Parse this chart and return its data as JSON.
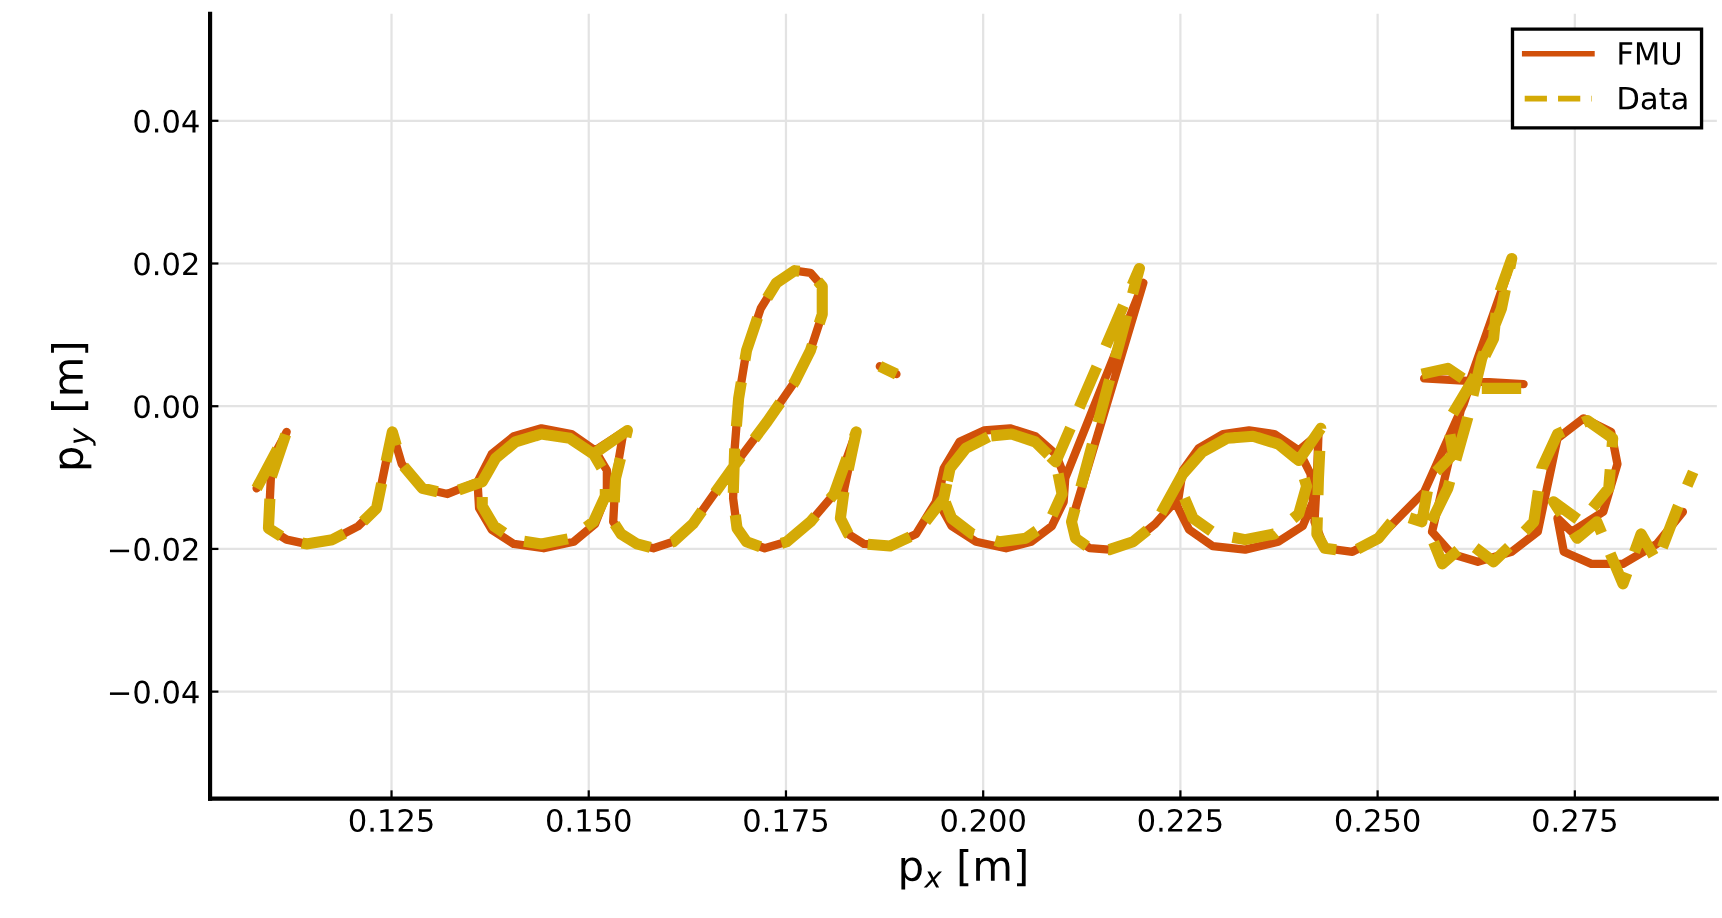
{
  "chart_data": {
    "type": "line",
    "xlabel": "p$_{x}$ [m]",
    "ylabel": "p$_{y}$ [m]",
    "xlim": [
      0.102,
      0.293
    ],
    "ylim": [
      -0.055,
      0.055
    ],
    "xticks": [
      0.125,
      {
        "value": 0.15,
        "label": "0.150"
      },
      0.175,
      {
        "value": 0.2,
        "label": "0.200"
      },
      0.225,
      {
        "value": 0.25,
        "label": "0.250"
      },
      0.275
    ],
    "yticks": [
      -0.04,
      -0.02,
      {
        "value": 0.0,
        "label": "0.00"
      },
      0.02,
      0.04
    ],
    "grid": true,
    "legend": "top right",
    "series": [
      {
        "name": "FMU",
        "color": "#d1500a",
        "line_style": "solid",
        "x": [
          0.1079,
          0.1117,
          0.1097,
          0.1094,
          0.1117,
          0.1142,
          0.1175,
          0.1208,
          0.1231,
          0.1243,
          0.1251,
          0.1263,
          0.1289,
          0.1321,
          0.1359,
          0.1377,
          0.1405,
          0.144,
          0.1478,
          0.1508,
          0.1523,
          0.1523,
          0.1508,
          0.1481,
          0.1443,
          0.1405,
          0.1377,
          0.1361,
          0.1359,
          0.1377,
          0.1405,
          0.144,
          0.1478,
          0.1508,
          0.1544,
          0.1534,
          0.1531,
          0.1541,
          0.1561,
          0.1582,
          0.1607,
          0.1632,
          0.1655,
          0.1688,
          0.1726,
          0.1761,
          0.1781,
          0.1796,
          0.1796,
          0.1781,
          0.1761,
          0.1738,
          0.1718,
          0.17,
          0.169,
          0.1685,
          0.1683,
          0.1688,
          0.17,
          0.1723,
          0.1751,
          0.1781,
          0.1811,
          0.1839,
          0.1824,
          0.1819,
          0.1829,
          0.1849,
          0.1882,
          0.1915,
          0.194,
          0.195,
          0.197,
          0.2001,
          0.2034,
          0.2066,
          0.2092,
          0.2104,
          0.2102,
          0.2087,
          0.2061,
          0.2029,
          0.1991,
          0.196,
          0.1943,
          0.195,
          0.197,
          0.2001,
          0.2034,
          0.2066,
          0.2092,
          0.2104,
          0.2203,
          0.2112,
          0.2117,
          0.2135,
          0.216,
          0.219,
          0.2218,
          0.2243,
          0.2253,
          0.2273,
          0.2304,
          0.2337,
          0.2369,
          0.24,
          0.2415,
          0.2418,
          0.2405,
          0.2374,
          0.2332,
          0.2291,
          0.2261,
          0.2246,
          0.2253,
          0.2273,
          0.2304,
          0.2337,
          0.2369,
          0.24,
          0.2425,
          0.2423,
          0.242,
          0.2433,
          0.2468,
          0.2501,
          0.2559,
          0.2609,
          0.2665,
          0.2609,
          0.2569,
          0.2594,
          0.2627,
          0.267,
          0.2703,
          0.2728,
          0.2761,
          0.2796,
          0.2804,
          0.2786,
          0.2746,
          0.2728,
          0.2736,
          0.2771,
          0.2811,
          0.2854,
          0.2887,
          null,
          0.2559,
          0.2685,
          null,
          0.1869,
          0.189
        ],
        "values": [
          -0.0115,
          -0.0036,
          -0.0101,
          -0.0171,
          -0.0187,
          -0.0193,
          -0.0187,
          -0.0168,
          -0.0143,
          -0.0078,
          -0.0036,
          -0.0081,
          -0.0115,
          -0.0123,
          -0.0106,
          -0.0067,
          -0.0042,
          -0.0031,
          -0.0039,
          -0.0062,
          -0.009,
          -0.0123,
          -0.0165,
          -0.019,
          -0.0199,
          -0.0193,
          -0.0173,
          -0.0143,
          -0.0106,
          -0.0067,
          -0.0042,
          -0.0031,
          -0.0039,
          -0.0062,
          -0.0036,
          -0.0101,
          -0.0162,
          -0.0179,
          -0.0193,
          -0.0199,
          -0.019,
          -0.0165,
          -0.0129,
          -0.0078,
          -0.0022,
          0.0034,
          0.0078,
          0.0129,
          0.0168,
          0.0187,
          0.019,
          0.0173,
          0.0137,
          0.0078,
          0.0011,
          -0.0059,
          -0.0129,
          -0.0171,
          -0.019,
          -0.0199,
          -0.019,
          -0.0162,
          -0.0123,
          -0.0036,
          -0.0115,
          -0.0157,
          -0.0179,
          -0.0193,
          -0.0196,
          -0.0179,
          -0.0134,
          -0.0087,
          -0.005,
          -0.0034,
          -0.0031,
          -0.0042,
          -0.0067,
          -0.0101,
          -0.0134,
          -0.0168,
          -0.019,
          -0.0199,
          -0.019,
          -0.0168,
          -0.0134,
          -0.0087,
          -0.005,
          -0.0034,
          -0.0031,
          -0.0042,
          -0.0067,
          -0.0101,
          0.0173,
          -0.0162,
          -0.0185,
          -0.0199,
          -0.0201,
          -0.019,
          -0.0165,
          -0.0134,
          -0.009,
          -0.0059,
          -0.0039,
          -0.0034,
          -0.0039,
          -0.0062,
          -0.0095,
          -0.0134,
          -0.0168,
          -0.019,
          -0.0201,
          -0.0196,
          -0.0173,
          -0.014,
          -0.009,
          -0.0059,
          -0.0039,
          -0.0034,
          -0.0039,
          -0.0062,
          -0.0039,
          -0.0101,
          -0.0162,
          -0.0199,
          -0.0204,
          -0.0185,
          -0.012,
          0.0003,
          0.0187,
          0.0011,
          -0.0176,
          -0.0207,
          -0.0218,
          -0.0204,
          -0.0176,
          -0.0045,
          -0.0017,
          -0.0036,
          -0.0081,
          -0.0148,
          -0.0176,
          -0.0157,
          -0.0204,
          -0.0221,
          -0.0221,
          -0.0193,
          -0.0148,
          null,
          0.0039,
          0.0031,
          null,
          0.0056,
          0.0045
        ]
      },
      {
        "name": "Data",
        "color": "#d4aa06",
        "line_style": "dashed",
        "x": [
          0.1079,
          0.1117,
          0.1097,
          0.1094,
          0.1117,
          0.1142,
          0.1175,
          0.1208,
          0.1231,
          0.1243,
          0.1251,
          0.1263,
          0.1289,
          0.1321,
          0.1365,
          0.1382,
          0.1407,
          0.144,
          0.1476,
          0.1506,
          0.1521,
          0.1521,
          0.1506,
          0.1478,
          0.144,
          0.1405,
          0.138,
          0.1365,
          0.1365,
          0.1382,
          0.1407,
          0.144,
          0.1476,
          0.1506,
          0.1549,
          0.1534,
          0.1531,
          0.1541,
          0.1561,
          0.1582,
          0.1607,
          0.1632,
          0.1655,
          0.1688,
          0.1726,
          0.1761,
          0.1781,
          0.1796,
          0.1796,
          0.1781,
          0.1761,
          0.1738,
          0.1718,
          0.17,
          0.169,
          0.1685,
          0.1683,
          0.1688,
          0.17,
          0.1723,
          0.1751,
          0.1781,
          0.1811,
          0.1839,
          0.1824,
          0.1819,
          0.1829,
          0.1849,
          0.1882,
          0.1915,
          0.195,
          0.1958,
          0.1978,
          0.2008,
          0.2036,
          0.2066,
          0.2092,
          0.21,
          0.2084,
          0.2054,
          0.2021,
          0.1986,
          0.196,
          0.195,
          0.1958,
          0.1978,
          0.2008,
          0.2036,
          0.2066,
          0.2092,
          0.2198,
          0.2112,
          0.2117,
          0.2135,
          0.216,
          0.219,
          0.2218,
          0.2253,
          0.2278,
          0.2309,
          0.2342,
          0.2374,
          0.24,
          0.241,
          0.24,
          0.2369,
          0.2332,
          0.2294,
          0.2266,
          0.2253,
          0.2253,
          0.2278,
          0.2309,
          0.2342,
          0.2374,
          0.24,
          0.2428,
          0.2425,
          0.2423,
          0.2433,
          0.2468,
          0.2501,
          0.2526,
          0.2556,
          0.2566,
          0.2596,
          0.2589,
          0.2622,
          0.2647,
          0.2652,
          0.267,
          0.2657,
          0.2632,
          0.2614,
          0.2589,
          0.2564,
          0.2582,
          0.2614,
          0.2647,
          0.2678,
          0.2698,
          0.2708,
          0.2728,
          0.2766,
          0.2798,
          0.2793,
          0.2758,
          0.2723,
          0.2753,
          0.2778,
          0.2811,
          0.2834,
          0.2854,
          0.288,
          0.29,
          null,
          0.2556,
          0.2589,
          0.2627,
          0.2682,
          null,
          0.1869,
          0.189
        ],
        "values": [
          -0.0115,
          -0.0036,
          -0.0101,
          -0.0171,
          -0.0187,
          -0.0193,
          -0.0187,
          -0.0168,
          -0.0143,
          -0.0078,
          -0.0036,
          -0.0081,
          -0.0115,
          -0.0123,
          -0.0106,
          -0.0073,
          -0.005,
          -0.0039,
          -0.0045,
          -0.0067,
          -0.0095,
          -0.0126,
          -0.0162,
          -0.0185,
          -0.0193,
          -0.0187,
          -0.0168,
          -0.014,
          -0.0106,
          -0.0073,
          -0.005,
          -0.0039,
          -0.0045,
          -0.0067,
          -0.0034,
          -0.0101,
          -0.0162,
          -0.0179,
          -0.0193,
          -0.0199,
          -0.019,
          -0.0165,
          -0.0129,
          -0.0078,
          -0.0022,
          0.0034,
          0.0078,
          0.0129,
          0.0168,
          0.0187,
          0.019,
          0.0173,
          0.0137,
          0.0078,
          0.0011,
          -0.0059,
          -0.0129,
          -0.0171,
          -0.019,
          -0.0199,
          -0.019,
          -0.0162,
          -0.0123,
          -0.0036,
          -0.0115,
          -0.0157,
          -0.0179,
          -0.0193,
          -0.0196,
          -0.0179,
          -0.0129,
          -0.0087,
          -0.0059,
          -0.0042,
          -0.0039,
          -0.005,
          -0.0078,
          -0.0123,
          -0.0162,
          -0.0185,
          -0.019,
          -0.0179,
          -0.0157,
          -0.0129,
          -0.0087,
          -0.0059,
          -0.0042,
          -0.0039,
          -0.005,
          -0.0078,
          0.0193,
          -0.0162,
          -0.0185,
          -0.0199,
          -0.0201,
          -0.019,
          -0.0165,
          -0.0095,
          -0.0064,
          -0.0045,
          -0.0042,
          -0.0053,
          -0.0076,
          -0.0112,
          -0.0151,
          -0.0179,
          -0.0187,
          -0.0179,
          -0.0157,
          -0.0123,
          -0.0095,
          -0.0064,
          -0.0045,
          -0.0042,
          -0.0053,
          -0.0076,
          -0.0031,
          -0.0101,
          -0.0179,
          -0.0199,
          -0.0204,
          -0.0185,
          -0.0151,
          -0.0162,
          -0.0101,
          -0.0067,
          -0.0022,
          0.0039,
          0.0095,
          0.0151,
          0.0207,
          0.0137,
          0.0067,
          -0.0017,
          -0.0115,
          -0.0171,
          -0.0221,
          -0.019,
          -0.0218,
          -0.0185,
          -0.0162,
          -0.0087,
          -0.0039,
          -0.002,
          -0.0045,
          -0.0115,
          -0.0162,
          -0.0134,
          -0.0185,
          -0.0162,
          -0.0249,
          -0.0179,
          -0.0218,
          -0.0143,
          -0.0092,
          null,
          0.0045,
          0.0053,
          0.0025,
          0.0025,
          null,
          0.0056,
          0.0045
        ]
      }
    ]
  }
}
